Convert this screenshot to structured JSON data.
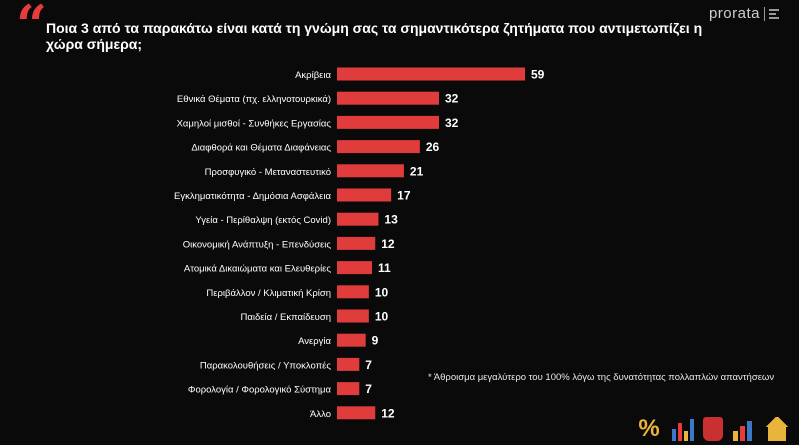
{
  "header": {
    "title": "Ποια 3 από τα παρακάτω είναι κατά τη γνώμη σας τα σημαντικότερα ζητήματα που αντιμετωπίζει η χώρα σήμερα;"
  },
  "logo": {
    "text": "prorata"
  },
  "note": "* Άθροισμα μεγαλύτερο του 100% λόγω της δυνατότητας πολλαπλών απαντήσεων",
  "colors": {
    "bar": "#e03c3c",
    "accent": "#e63c3c",
    "background": "#0a0a0a"
  },
  "icons": [
    "percent-icon",
    "bar-chart-icon",
    "bin-icon",
    "growth-chart-icon",
    "house-icon"
  ],
  "chart_data": {
    "type": "bar",
    "orientation": "horizontal",
    "categories": [
      "Ακρίβεια",
      "Εθνικά Θέματα (πχ. ελληνοτουρκικά)",
      "Χαμηλοί μισθοί - Συνθήκες Εργασίας",
      "Διαφθορά και Θέματα Διαφάνειας",
      "Προσφυγικό - Μεταναστευτικό",
      "Εγκληματικότητα - Δημόσια Ασφάλεια",
      "Υγεία - Περίθαλψη (εκτός Covid)",
      "Οικονομική Ανάπτυξη - Επενδύσεις",
      "Ατομικά Δικαιώματα και Ελευθερίες",
      "Περιβάλλον / Κλιματική Κρίση",
      "Παιδεία / Εκπαίδευση",
      "Ανεργία",
      "Παρακολουθήσεις / Υποκλοπές",
      "Φορολογία / Φορολογικό Σύστημα",
      "Άλλο"
    ],
    "values": [
      59,
      32,
      32,
      26,
      21,
      17,
      13,
      12,
      11,
      10,
      10,
      9,
      7,
      7,
      12
    ],
    "xlim": [
      0,
      59
    ],
    "grid": false,
    "legend": "none"
  }
}
